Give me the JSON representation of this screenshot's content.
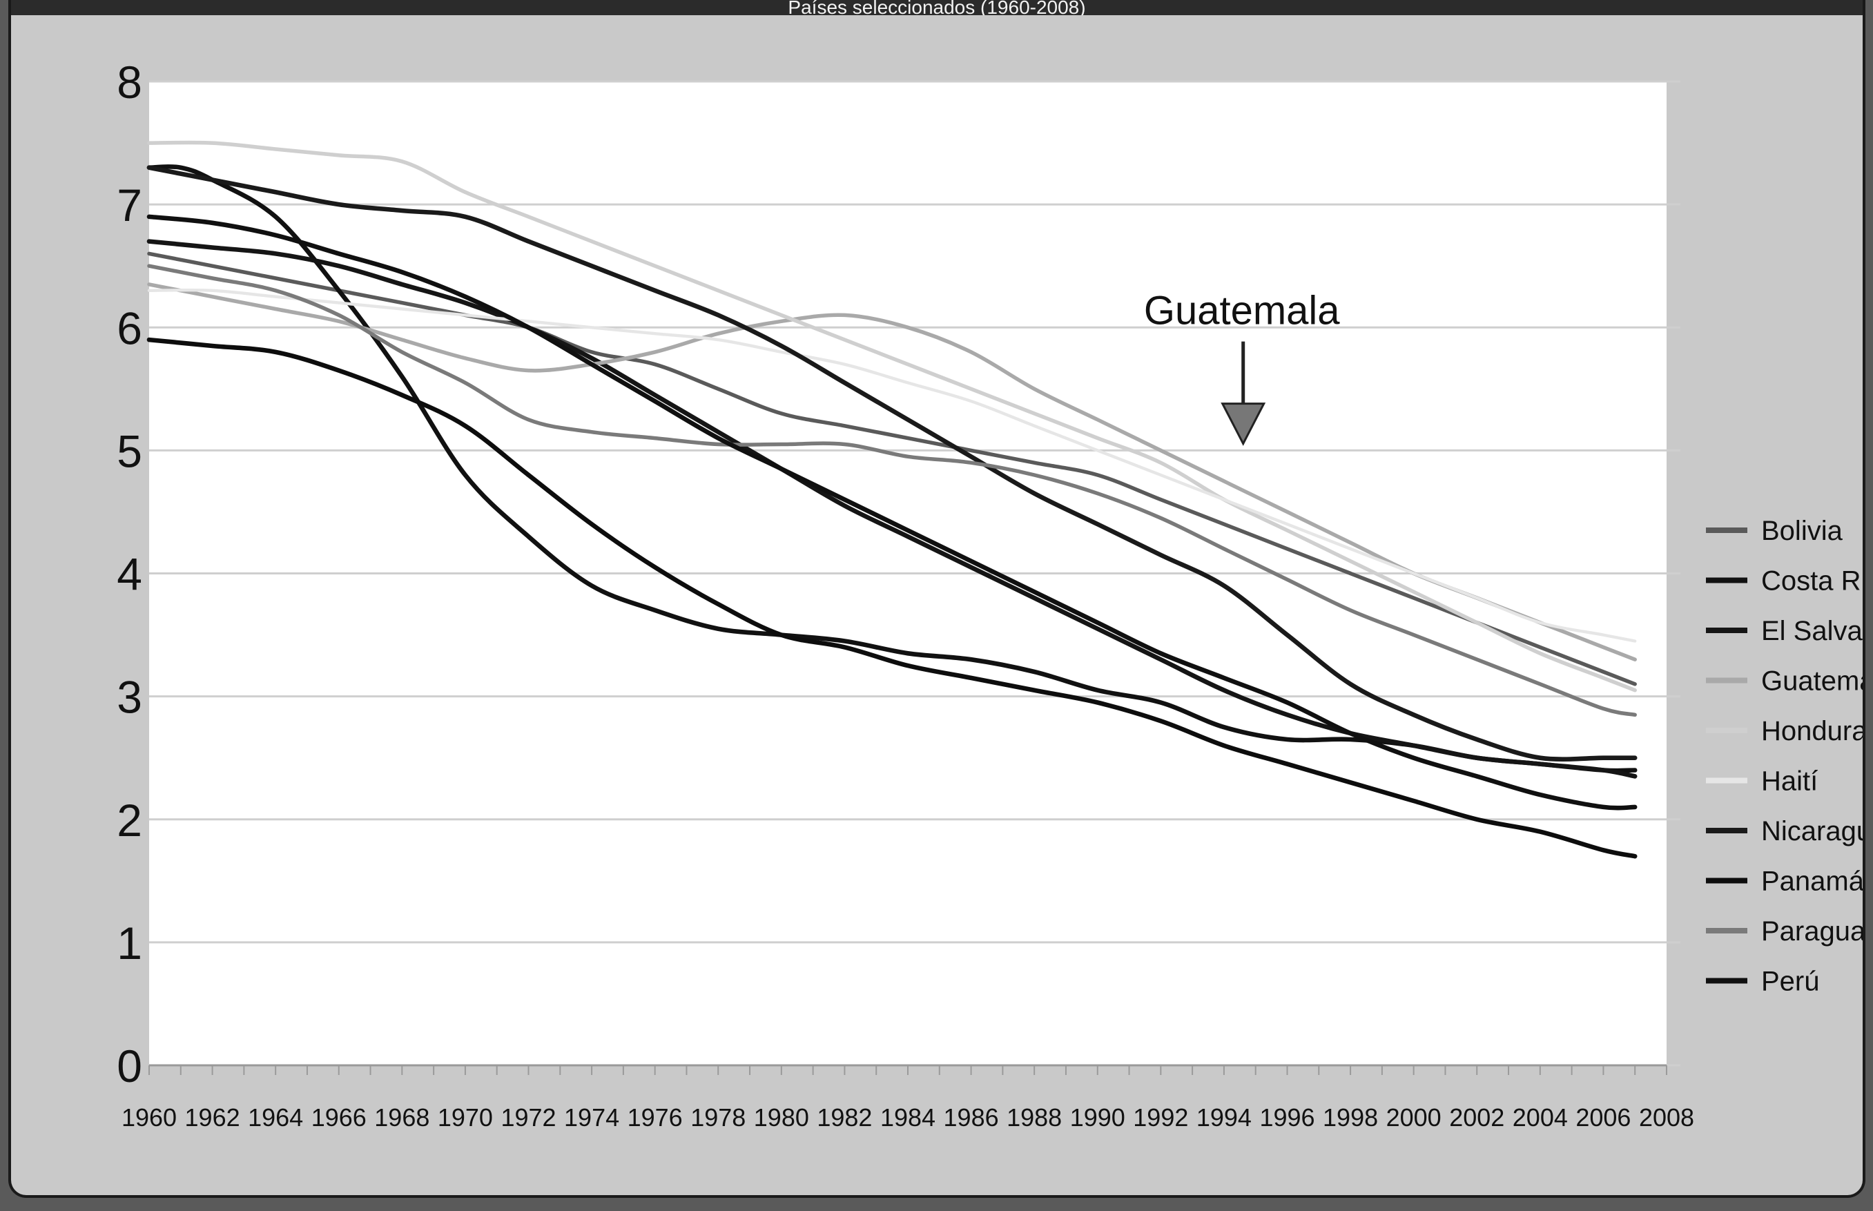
{
  "header": {
    "title": "Países seleccionados (1960-2008)"
  },
  "chart_data": {
    "type": "line",
    "title": "Países seleccionados (1960-2008)",
    "xlabel": "",
    "ylabel": "",
    "xlim": [
      1960,
      2008
    ],
    "ylim": [
      0,
      8
    ],
    "y_ticks": [
      "0",
      "1",
      "2",
      "3",
      "4",
      "5",
      "6",
      "7",
      "8"
    ],
    "x_ticks": [
      "1960",
      "1962",
      "1964",
      "1966",
      "1968",
      "1970",
      "1972",
      "1974",
      "1976",
      "1978",
      "1980",
      "1982",
      "1984",
      "1986",
      "1988",
      "1990",
      "1992",
      "1994",
      "1996",
      "1998",
      "2000",
      "2002",
      "2004",
      "2006",
      "2008"
    ],
    "grid": "horizontal",
    "legend_position": "right",
    "annotation": {
      "text": "Guatemala",
      "points_to": [
        1995,
        5.1
      ]
    },
    "series": [
      {
        "name": "Bolivia",
        "color": "#5a5a5a",
        "width": 5,
        "x": [
          1960,
          1962,
          1964,
          1966,
          1968,
          1970,
          1972,
          1974,
          1976,
          1978,
          1980,
          1982,
          1984,
          1986,
          1988,
          1990,
          1992,
          1994,
          1996,
          1998,
          2000,
          2002,
          2004,
          2006,
          2007
        ],
        "y": [
          6.6,
          6.5,
          6.4,
          6.3,
          6.2,
          6.1,
          6.0,
          5.8,
          5.7,
          5.5,
          5.3,
          5.2,
          5.1,
          5.0,
          4.9,
          4.8,
          4.6,
          4.4,
          4.2,
          4.0,
          3.8,
          3.6,
          3.4,
          3.2,
          3.1
        ]
      },
      {
        "name": "Costa Rica",
        "color": "#111111",
        "width": 6,
        "x": [
          1960,
          1961,
          1962,
          1964,
          1966,
          1968,
          1970,
          1972,
          1974,
          1976,
          1978,
          1980,
          1982,
          1984,
          1986,
          1988,
          1990,
          1992,
          1994,
          1996,
          1998,
          2000,
          2002,
          2004,
          2006,
          2007
        ],
        "y": [
          7.3,
          7.3,
          7.2,
          6.9,
          6.3,
          5.6,
          4.8,
          4.3,
          3.9,
          3.7,
          3.55,
          3.5,
          3.45,
          3.35,
          3.3,
          3.2,
          3.05,
          2.95,
          2.75,
          2.65,
          2.65,
          2.6,
          2.5,
          2.45,
          2.4,
          2.4
        ]
      },
      {
        "name": "El Salvador",
        "color": "#151515",
        "width": 6,
        "x": [
          1960,
          1962,
          1964,
          1966,
          1968,
          1970,
          1972,
          1974,
          1976,
          1978,
          1980,
          1982,
          1984,
          1986,
          1988,
          1990,
          1992,
          1994,
          1996,
          1998,
          2000,
          2002,
          2004,
          2006,
          2007
        ],
        "y": [
          6.7,
          6.65,
          6.6,
          6.5,
          6.35,
          6.2,
          6.0,
          5.75,
          5.45,
          5.15,
          4.85,
          4.55,
          4.3,
          4.05,
          3.8,
          3.55,
          3.3,
          3.05,
          2.85,
          2.7,
          2.6,
          2.5,
          2.45,
          2.4,
          2.35
        ]
      },
      {
        "name": "Guatemala",
        "color": "#a9a9a9",
        "width": 5,
        "x": [
          1960,
          1962,
          1964,
          1966,
          1968,
          1970,
          1972,
          1974,
          1976,
          1978,
          1980,
          1982,
          1984,
          1986,
          1988,
          1990,
          1992,
          1994,
          1996,
          1998,
          2000,
          2002,
          2004,
          2006,
          2007
        ],
        "y": [
          6.35,
          6.25,
          6.15,
          6.05,
          5.9,
          5.75,
          5.65,
          5.7,
          5.8,
          5.95,
          6.05,
          6.1,
          6.0,
          5.8,
          5.5,
          5.25,
          5.0,
          4.75,
          4.5,
          4.25,
          4.0,
          3.8,
          3.6,
          3.4,
          3.3
        ]
      },
      {
        "name": "Honduras",
        "color": "#cfcfcf",
        "width": 5,
        "x": [
          1960,
          1962,
          1964,
          1966,
          1968,
          1970,
          1972,
          1974,
          1976,
          1978,
          1980,
          1982,
          1984,
          1986,
          1988,
          1990,
          1992,
          1994,
          1996,
          1998,
          2000,
          2002,
          2004,
          2006,
          2007
        ],
        "y": [
          7.5,
          7.5,
          7.45,
          7.4,
          7.35,
          7.1,
          6.9,
          6.7,
          6.5,
          6.3,
          6.1,
          5.9,
          5.7,
          5.5,
          5.3,
          5.1,
          4.9,
          4.6,
          4.35,
          4.1,
          3.85,
          3.6,
          3.35,
          3.15,
          3.05
        ]
      },
      {
        "name": "Haití",
        "color": "#e6e6e6",
        "width": 4,
        "x": [
          1960,
          1962,
          1964,
          1966,
          1968,
          1970,
          1972,
          1974,
          1976,
          1978,
          1980,
          1982,
          1984,
          1986,
          1988,
          1990,
          1992,
          1994,
          1996,
          1998,
          2000,
          2002,
          2004,
          2006,
          2007
        ],
        "y": [
          6.3,
          6.3,
          6.25,
          6.2,
          6.15,
          6.1,
          6.05,
          6.0,
          5.95,
          5.9,
          5.8,
          5.7,
          5.55,
          5.4,
          5.2,
          5.0,
          4.8,
          4.6,
          4.4,
          4.2,
          4.0,
          3.8,
          3.6,
          3.5,
          3.45
        ]
      },
      {
        "name": "Nicaragua",
        "color": "#1a1a1a",
        "width": 6,
        "x": [
          1960,
          1962,
          1964,
          1966,
          1968,
          1970,
          1972,
          1974,
          1976,
          1978,
          1980,
          1982,
          1984,
          1986,
          1988,
          1990,
          1992,
          1994,
          1996,
          1998,
          2000,
          2002,
          2004,
          2006,
          2007
        ],
        "y": [
          7.3,
          7.2,
          7.1,
          7.0,
          6.95,
          6.9,
          6.7,
          6.5,
          6.3,
          6.1,
          5.85,
          5.55,
          5.25,
          4.95,
          4.65,
          4.4,
          4.15,
          3.9,
          3.5,
          3.1,
          2.85,
          2.65,
          2.5,
          2.5,
          2.5
        ]
      },
      {
        "name": "Panamá",
        "color": "#0d0d0d",
        "width": 6,
        "x": [
          1960,
          1962,
          1964,
          1966,
          1968,
          1970,
          1972,
          1974,
          1976,
          1978,
          1980,
          1982,
          1984,
          1986,
          1988,
          1990,
          1992,
          1994,
          1996,
          1998,
          2000,
          2002,
          2004,
          2006,
          2007
        ],
        "y": [
          5.9,
          5.85,
          5.8,
          5.65,
          5.45,
          5.2,
          4.8,
          4.4,
          4.05,
          3.75,
          3.5,
          3.4,
          3.25,
          3.15,
          3.05,
          2.95,
          2.8,
          2.6,
          2.45,
          2.3,
          2.15,
          2.0,
          1.9,
          1.75,
          1.7
        ]
      },
      {
        "name": "Paraguay",
        "color": "#7a7a7a",
        "width": 5,
        "x": [
          1960,
          1962,
          1964,
          1966,
          1968,
          1970,
          1972,
          1974,
          1976,
          1978,
          1980,
          1982,
          1984,
          1986,
          1988,
          1990,
          1992,
          1994,
          1996,
          1998,
          2000,
          2002,
          2004,
          2006,
          2007
        ],
        "y": [
          6.5,
          6.4,
          6.3,
          6.1,
          5.8,
          5.55,
          5.25,
          5.15,
          5.1,
          5.05,
          5.05,
          5.05,
          4.95,
          4.9,
          4.8,
          4.65,
          4.45,
          4.2,
          3.95,
          3.7,
          3.5,
          3.3,
          3.1,
          2.9,
          2.85
        ]
      },
      {
        "name": "Perú",
        "color": "#101010",
        "width": 6,
        "x": [
          1960,
          1962,
          1964,
          1966,
          1968,
          1970,
          1972,
          1974,
          1976,
          1978,
          1980,
          1982,
          1984,
          1986,
          1988,
          1990,
          1992,
          1994,
          1996,
          1998,
          2000,
          2002,
          2004,
          2006,
          2007
        ],
        "y": [
          6.9,
          6.85,
          6.75,
          6.6,
          6.45,
          6.25,
          6.0,
          5.7,
          5.4,
          5.1,
          4.85,
          4.6,
          4.35,
          4.1,
          3.85,
          3.6,
          3.35,
          3.15,
          2.95,
          2.7,
          2.5,
          2.35,
          2.2,
          2.1,
          2.1
        ]
      }
    ]
  }
}
